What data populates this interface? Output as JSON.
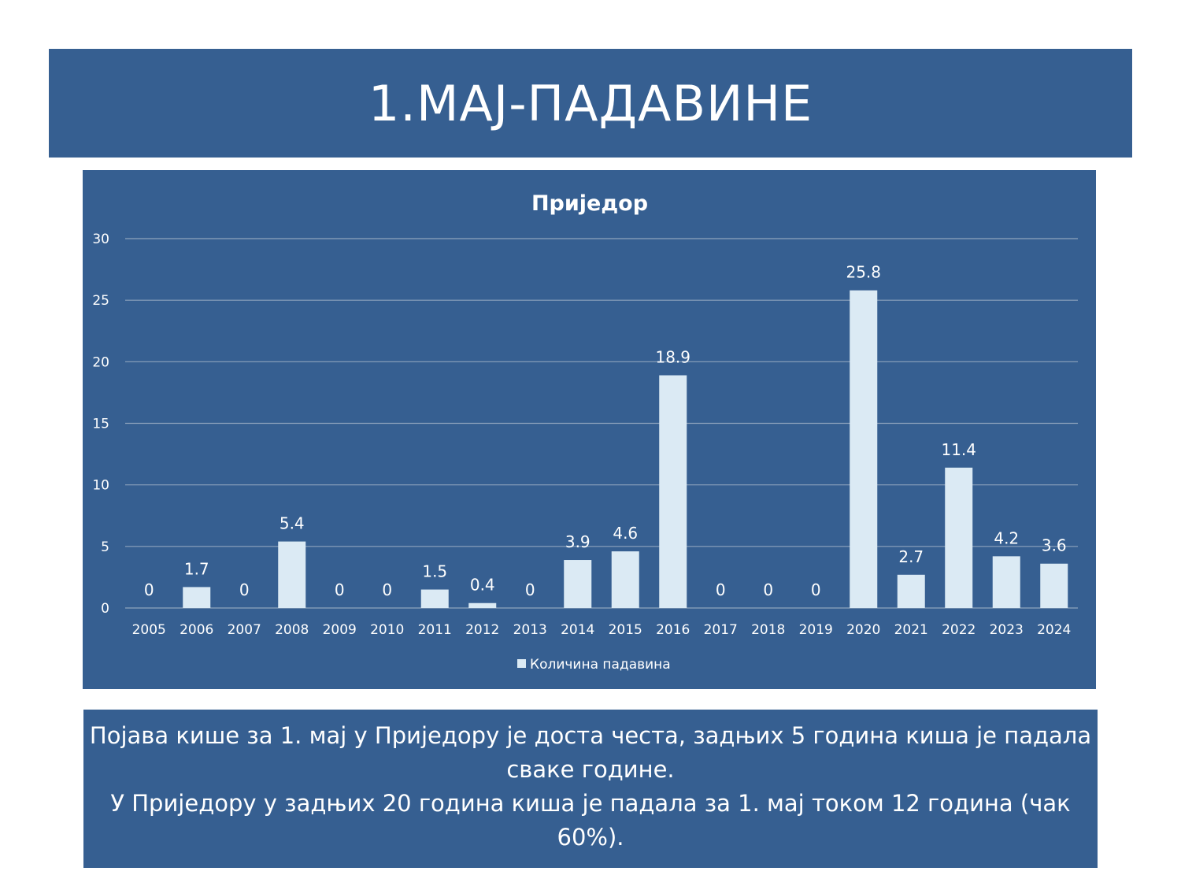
{
  "slide": {
    "title": "1.МАЈ-ПАДАВИНЕ",
    "description_lines": [
      "Појава кише за 1. мај у Приједору је доста честа, задњих 5 година киша је падала сваке године.",
      "У Приједору у задњих 20 година киша је падала за 1. мај током 12 година (чак 60%)."
    ]
  },
  "colors": {
    "panel_background": "#365f91",
    "bar_fill": "#dbeaf4",
    "text": "#ffffff",
    "gridline": "#8ea3bd"
  },
  "chart_data": {
    "type": "bar",
    "title": "Приједор",
    "xlabel": "",
    "ylabel": "",
    "ylim": [
      0,
      30
    ],
    "yticks": [
      0,
      5,
      10,
      15,
      20,
      25,
      30
    ],
    "grid": true,
    "legend_position": "bottom",
    "categories": [
      "2005",
      "2006",
      "2007",
      "2008",
      "2009",
      "2010",
      "2011",
      "2012",
      "2013",
      "2014",
      "2015",
      "2016",
      "2017",
      "2018",
      "2019",
      "2020",
      "2021",
      "2022",
      "2023",
      "2024"
    ],
    "series": [
      {
        "name": "Количина падавина",
        "values": [
          0,
          1.7,
          0,
          5.4,
          0,
          0,
          1.5,
          0.4,
          0,
          3.9,
          4.6,
          18.9,
          0,
          0,
          0,
          25.8,
          2.7,
          11.4,
          4.2,
          3.6
        ]
      }
    ]
  }
}
